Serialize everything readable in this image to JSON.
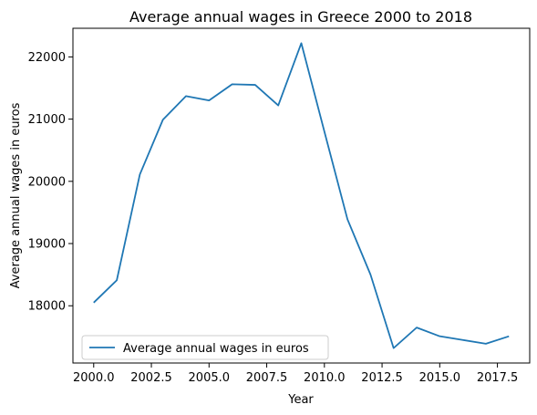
{
  "chart_data": {
    "type": "line",
    "title": "Average annual wages in Greece 2000 to 2018",
    "xlabel": "Year",
    "ylabel": "Average annual wages in euros",
    "xlim": [
      1999.1,
      2018.9
    ],
    "ylim": [
      17080,
      22460
    ],
    "x_ticks": [
      2000.0,
      2002.5,
      2005.0,
      2007.5,
      2010.0,
      2012.5,
      2015.0,
      2017.5
    ],
    "x_tick_labels": [
      "2000.0",
      "2002.5",
      "2005.0",
      "2007.5",
      "2010.0",
      "2012.5",
      "2015.0",
      "2017.5"
    ],
    "y_ticks": [
      18000,
      19000,
      20000,
      21000,
      22000
    ],
    "y_tick_labels": [
      "18000",
      "19000",
      "20000",
      "21000",
      "22000"
    ],
    "grid": false,
    "legend_position": "lower-left",
    "series": [
      {
        "name": "Average annual wages in euros",
        "color": "#1f77b4",
        "x": [
          2000,
          2001,
          2002,
          2003,
          2004,
          2005,
          2006,
          2007,
          2008,
          2009,
          2010,
          2011,
          2012,
          2013,
          2014,
          2015,
          2016,
          2017,
          2018
        ],
        "y": [
          18050,
          18410,
          20110,
          20990,
          21370,
          21300,
          21560,
          21550,
          21220,
          22220,
          20800,
          19390,
          18500,
          17320,
          17650,
          17510,
          17450,
          17390,
          17510
        ]
      }
    ]
  }
}
